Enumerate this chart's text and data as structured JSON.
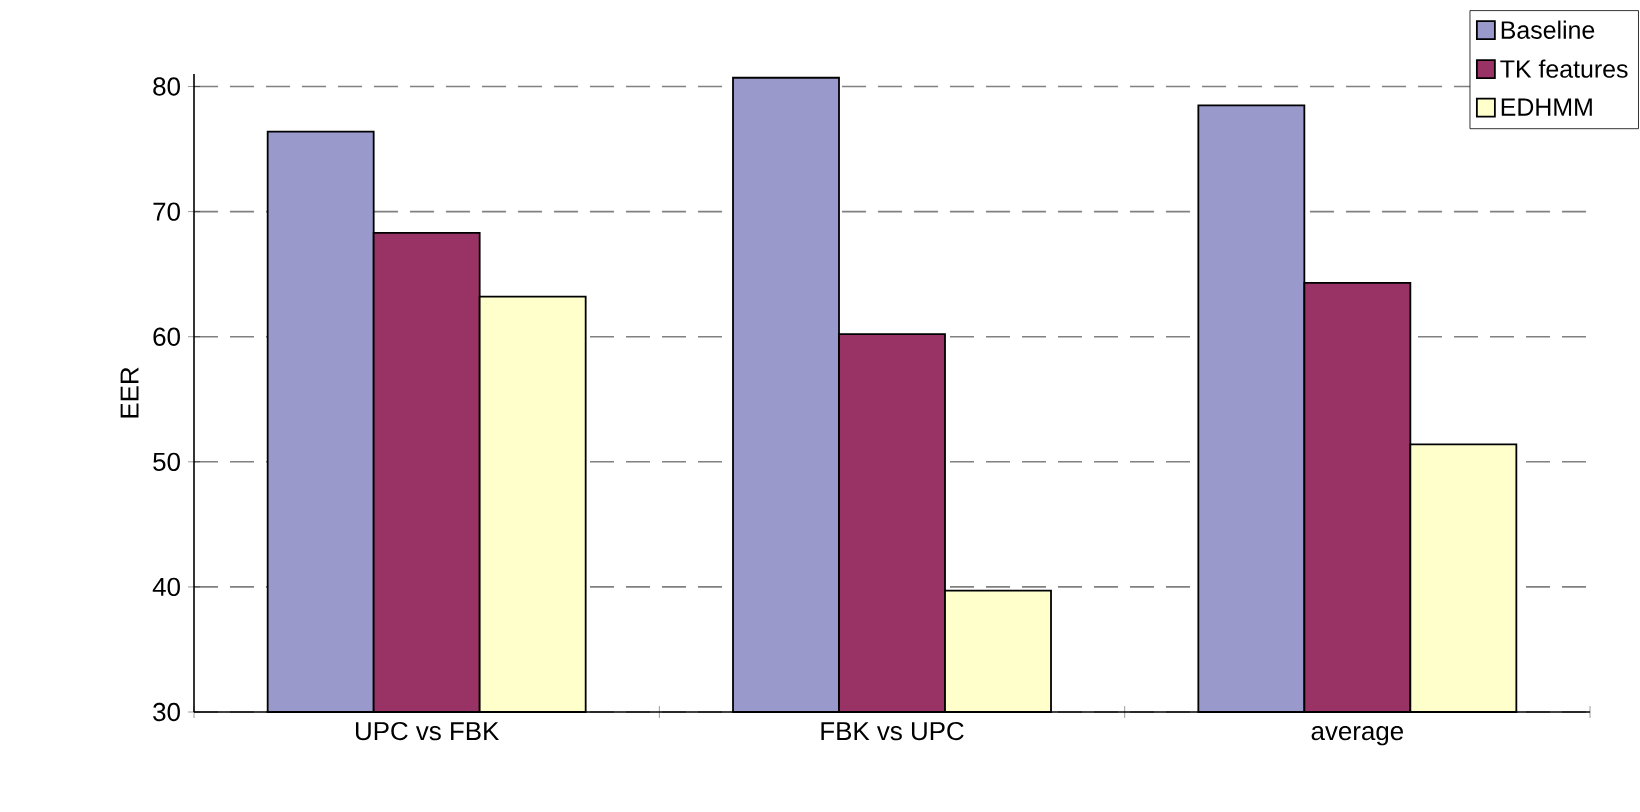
{
  "chart_data": {
    "type": "bar",
    "ylabel": "EER",
    "categories": [
      "UPC vs FBK",
      "FBK vs UPC",
      "average"
    ],
    "series": [
      {
        "name": "Baseline",
        "color": "#9999cc",
        "values": [
          76.4,
          80.7,
          78.5
        ]
      },
      {
        "name": "TK features",
        "color": "#993366",
        "values": [
          68.3,
          60.2,
          64.3
        ]
      },
      {
        "name": "EDHMM",
        "color": "#ffffcc",
        "values": [
          63.2,
          39.7,
          51.4
        ]
      }
    ],
    "ylim": [
      30,
      81
    ],
    "yticks": [
      30,
      40,
      50,
      60,
      70,
      80
    ],
    "grid": "y",
    "legend": "top right"
  }
}
